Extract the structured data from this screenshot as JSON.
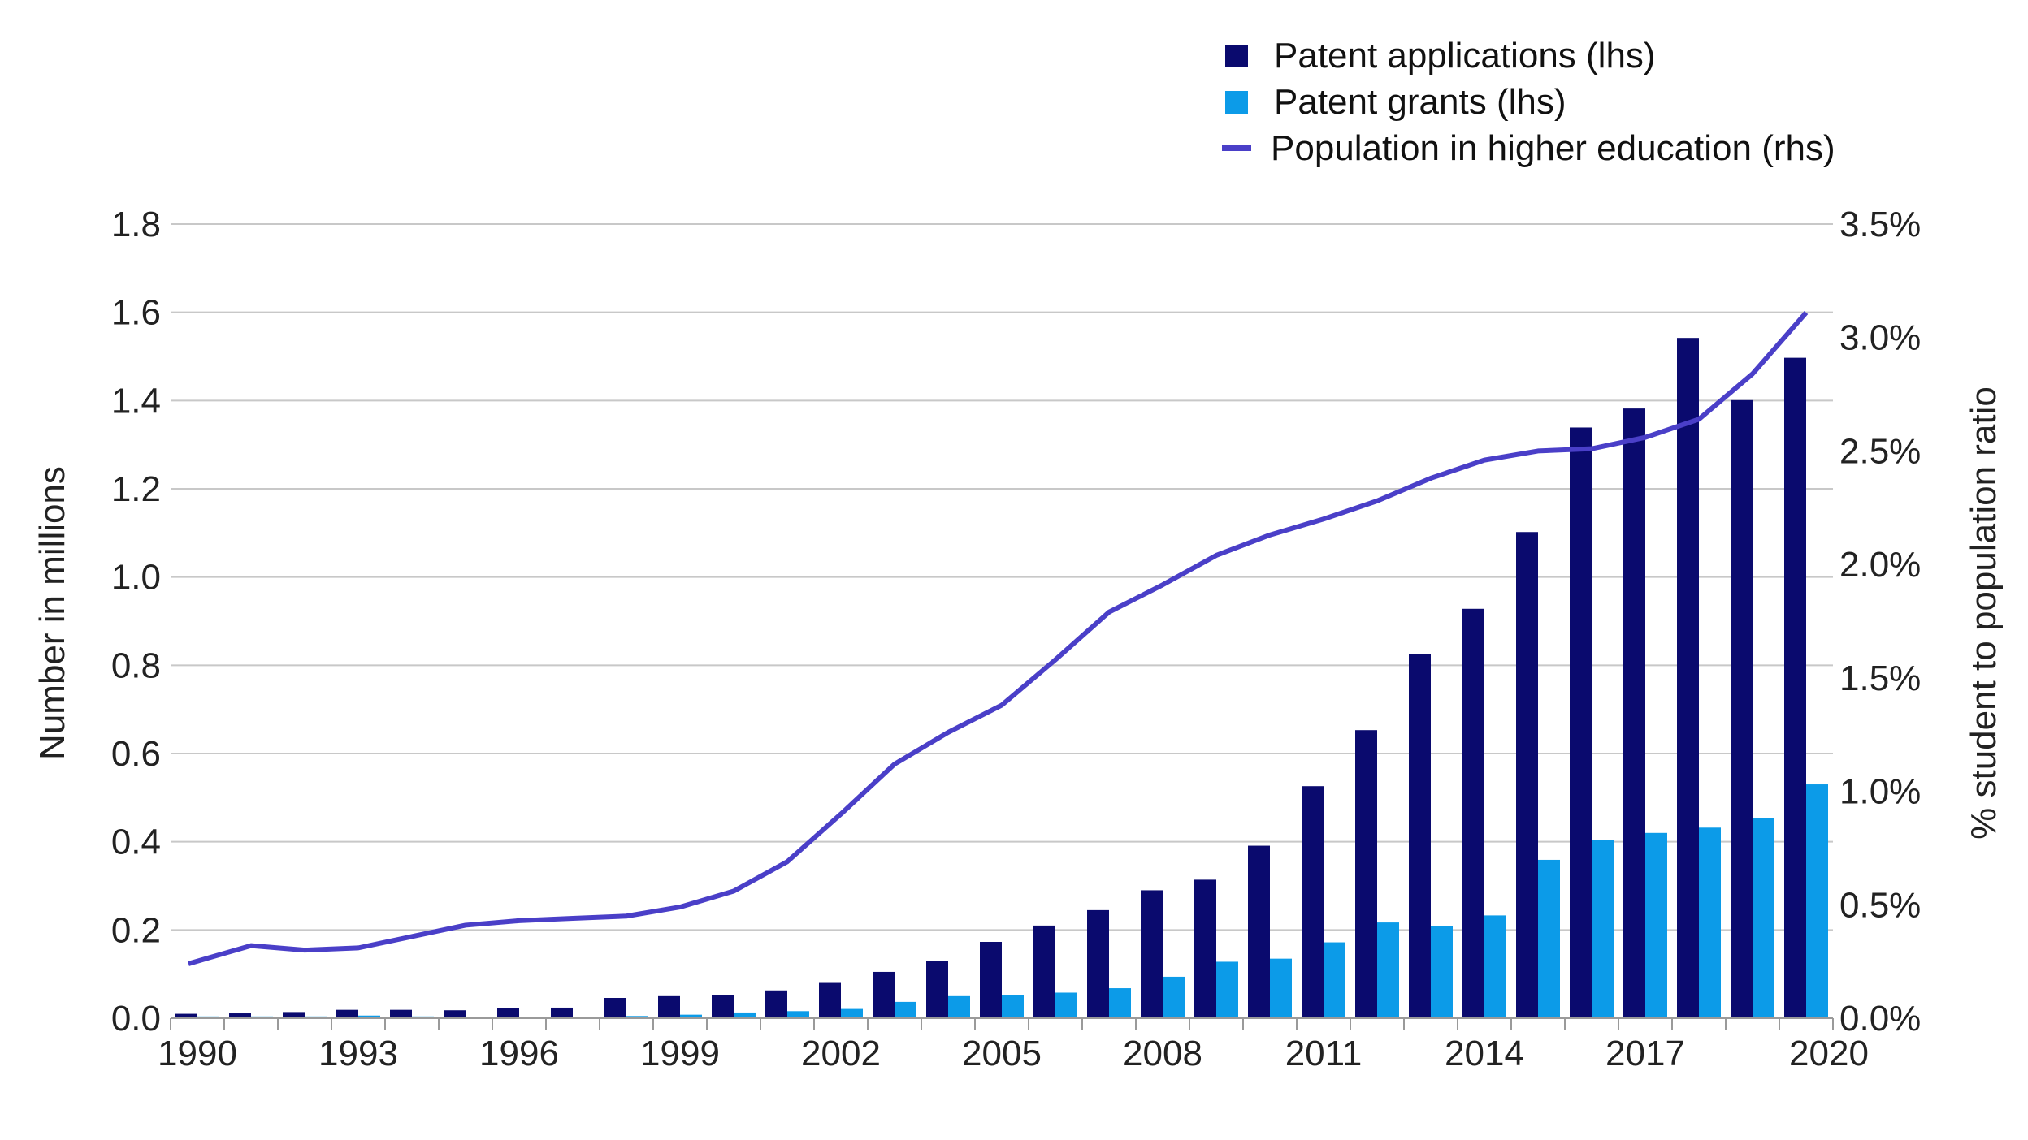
{
  "chart_data": {
    "type": "bar",
    "title": "",
    "x": [
      1990,
      1991,
      1992,
      1993,
      1994,
      1995,
      1996,
      1997,
      1998,
      1999,
      2000,
      2001,
      2002,
      2003,
      2004,
      2005,
      2006,
      2007,
      2008,
      2009,
      2010,
      2011,
      2012,
      2013,
      2014,
      2015,
      2016,
      2017,
      2018,
      2019,
      2020
    ],
    "xtick_labels": [
      "1990",
      "1993",
      "1996",
      "1999",
      "2002",
      "2005",
      "2008",
      "2011",
      "2014",
      "2017",
      "2020"
    ],
    "xtick_values": [
      1990,
      1993,
      1996,
      1999,
      2002,
      2005,
      2008,
      2011,
      2014,
      2017,
      2020
    ],
    "series": [
      {
        "name": "Patent applications (lhs)",
        "type": "bar",
        "axis": "left",
        "color": "#0a0a6e",
        "values": [
          0.01,
          0.011,
          0.014,
          0.019,
          0.019,
          0.018,
          0.023,
          0.024,
          0.046,
          0.05,
          0.052,
          0.063,
          0.08,
          0.105,
          0.13,
          0.173,
          0.21,
          0.245,
          0.29,
          0.314,
          0.391,
          0.526,
          0.653,
          0.825,
          0.928,
          1.102,
          1.339,
          1.382,
          1.542,
          1.401,
          1.497
        ]
      },
      {
        "name": "Patent grants (lhs)",
        "type": "bar",
        "axis": "left",
        "color": "#0c9be8",
        "values": [
          0.004,
          0.004,
          0.004,
          0.006,
          0.004,
          0.003,
          0.003,
          0.003,
          0.005,
          0.008,
          0.013,
          0.016,
          0.021,
          0.037,
          0.05,
          0.053,
          0.058,
          0.068,
          0.094,
          0.128,
          0.135,
          0.172,
          0.217,
          0.208,
          0.233,
          0.359,
          0.404,
          0.42,
          0.432,
          0.453,
          0.53
        ]
      },
      {
        "name": "Population in higher education (rhs)",
        "type": "line",
        "axis": "right",
        "color": "#4a3fc8",
        "values": [
          0.24,
          0.32,
          0.3,
          0.31,
          0.36,
          0.41,
          0.43,
          0.44,
          0.45,
          0.49,
          0.56,
          0.69,
          0.9,
          1.12,
          1.26,
          1.38,
          1.58,
          1.79,
          1.91,
          2.04,
          2.13,
          2.2,
          2.28,
          2.38,
          2.46,
          2.5,
          2.51,
          2.56,
          2.64,
          2.84,
          3.11
        ]
      }
    ],
    "ylabel": "Number in millions",
    "ylim": [
      0,
      1.8
    ],
    "yticks": [
      "0.0",
      "0.2",
      "0.4",
      "0.6",
      "0.8",
      "1.0",
      "1.2",
      "1.4",
      "1.6",
      "1.8"
    ],
    "y2label": "% student to population ratio",
    "y2lim": [
      0,
      3.5
    ],
    "y2ticks": [
      "0.0%",
      "0.5%",
      "1.0%",
      "1.5%",
      "2.0%",
      "2.5%",
      "3.0%",
      "3.5%"
    ],
    "grid": "horizontal",
    "legend_position": "top-right",
    "colors": {
      "grid": "#c8c8c8",
      "axis": "#9a9a9a",
      "text": "#222222"
    }
  }
}
